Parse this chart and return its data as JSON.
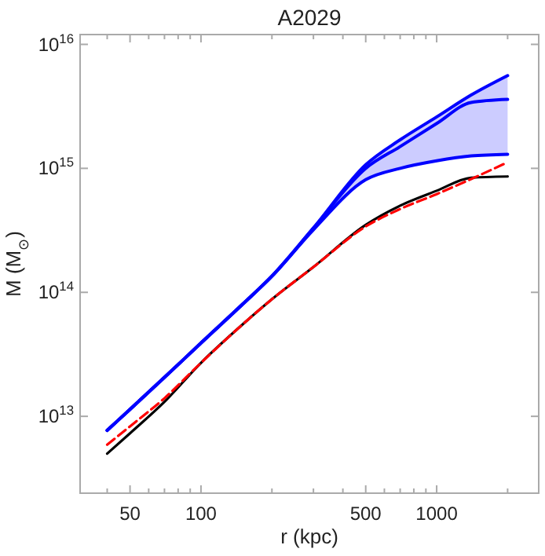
{
  "chart_data": {
    "type": "line",
    "title": "A2029",
    "xlabel": "r (kpc)",
    "ylabel": "M (M$_{⊙}$)",
    "log": "xy",
    "grid": false,
    "xlim": [
      30.7,
      2710
    ],
    "ylim": [
      2400000000000.0,
      1.2e+16
    ],
    "xticks": [
      {
        "value": 40,
        "label": null
      },
      50,
      {
        "value": 60,
        "label": null
      },
      {
        "value": 70,
        "label": null
      },
      {
        "value": 80,
        "label": null
      },
      {
        "value": 90,
        "label": null
      },
      100,
      {
        "value": 200,
        "label": null
      },
      {
        "value": 300,
        "label": null
      },
      {
        "value": 400,
        "label": null
      },
      500,
      {
        "value": 600,
        "label": null
      },
      {
        "value": 700,
        "label": null
      },
      {
        "value": 800,
        "label": null
      },
      {
        "value": 900,
        "label": null
      },
      1000,
      {
        "value": 2000,
        "label": null
      }
    ],
    "yticks": [
      {
        "value": 10000000000000.0,
        "label": "10$^{13}$"
      },
      {
        "value": 100000000000000.0,
        "label": "10$^{14}$"
      },
      {
        "value": 1000000000000000.0,
        "label": "10$^{15}$"
      },
      {
        "value": 1e+16,
        "label": "10$^{16}$"
      }
    ],
    "x": [
      40,
      50,
      70,
      100,
      150,
      200,
      300,
      500,
      700,
      1000,
      1400,
      2000
    ],
    "series": [
      {
        "color": "#0000ff",
        "line_style": "solid",
        "values": [
          7700000000000.0,
          11400000000000.0,
          20600000000000.0,
          39000000000000.0,
          80000000000000.0,
          135000000000000.0,
          330000000000000.0,
          1070000000000000.0,
          1700000000000000.0,
          2600000000000000.0,
          3900000000000000.0,
          5600000000000000.0
        ]
      },
      {
        "color": "#0000ff",
        "line_style": "solid",
        "values": [
          7700000000000.0,
          11400000000000.0,
          20600000000000.0,
          39000000000000.0,
          80000000000000.0,
          135000000000000.0,
          330000000000000.0,
          1000000000000000.0,
          1500000000000000.0,
          2300000000000000.0,
          3400000000000000.0,
          3600000000000000.0
        ],
        "lower": [
          7700000000000.0,
          11400000000000.0,
          20600000000000.0,
          39000000000000.0,
          80000000000000.0,
          135000000000000.0,
          320000000000000.0,
          810000000000000.0,
          1000000000000000.0,
          1150000000000000.0,
          1260000000000000.0,
          1300000000000000.0
        ],
        "upper": [
          7700000000000.0,
          11400000000000.0,
          20600000000000.0,
          39000000000000.0,
          80000000000000.0,
          135000000000000.0,
          330000000000000.0,
          1070000000000000.0,
          1700000000000000.0,
          2600000000000000.0,
          3900000000000000.0,
          5600000000000000.0
        ]
      },
      {
        "color": "#0000ff",
        "line_style": "solid",
        "values": [
          7700000000000.0,
          11400000000000.0,
          20600000000000.0,
          39000000000000.0,
          80000000000000.0,
          135000000000000.0,
          320000000000000.0,
          810000000000000.0,
          1000000000000000.0,
          1150000000000000.0,
          1260000000000000.0,
          1300000000000000.0
        ]
      },
      {
        "color": "#000000",
        "line_style": "solid",
        "values": [
          5000000000000.0,
          7300000000000.0,
          13100000000000.0,
          27000000000000.0,
          55000000000000.0,
          88000000000000.0,
          160000000000000.0,
          350000000000000.0,
          500000000000000.0,
          660000000000000.0,
          840000000000000.0,
          860000000000000.0
        ]
      },
      {
        "color": "#ff0000",
        "line_style": "dashed",
        "values": [
          5900000000000.0,
          8300000000000.0,
          14000000000000.0,
          27000000000000.0,
          55000000000000.0,
          88000000000000.0,
          160000000000000.0,
          340000000000000.0,
          470000000000000.0,
          620000000000000.0,
          820000000000000.0,
          1120000000000000.0
        ]
      }
    ]
  }
}
